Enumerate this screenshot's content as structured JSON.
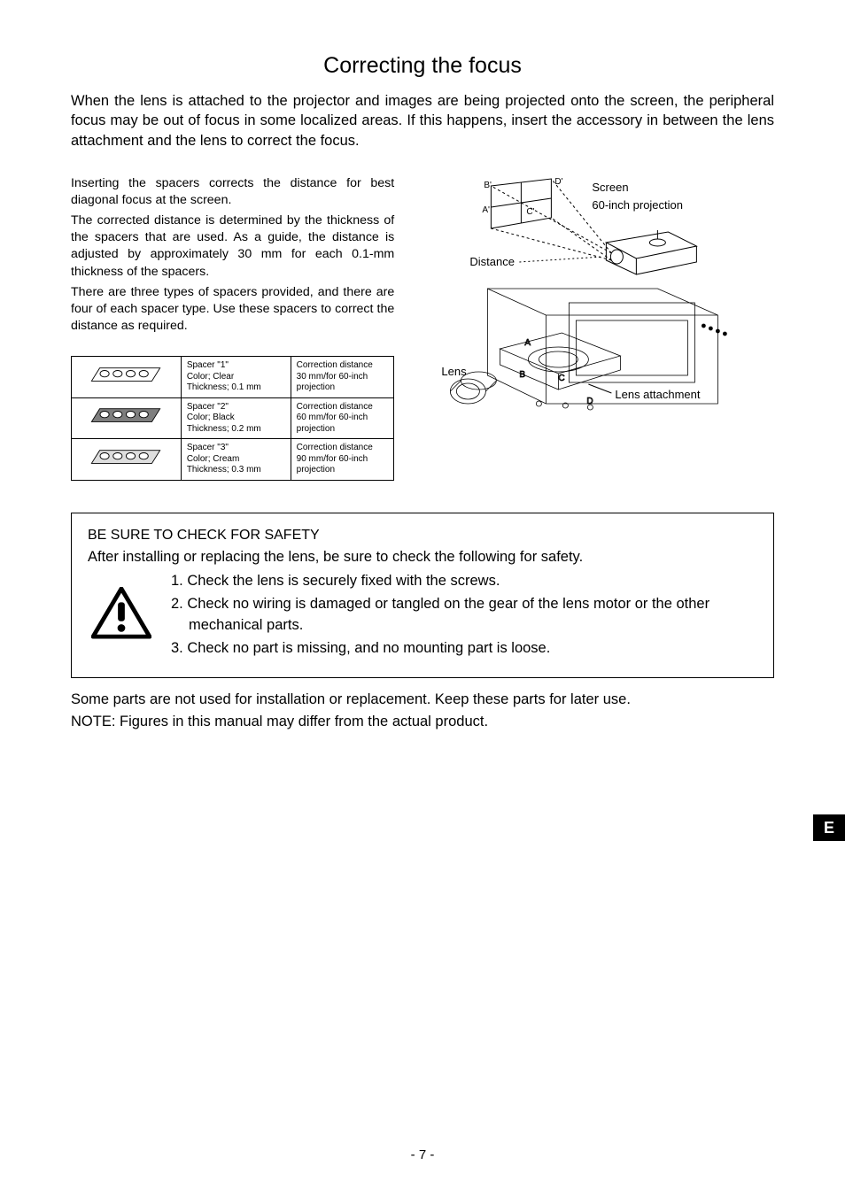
{
  "title": "Correcting the focus",
  "intro": "When the lens is attached to the projector and images are being projected onto the screen, the peripheral focus may be out of focus in some localized areas. If this happens, insert the accessory in between the lens attachment and the lens to correct the focus.",
  "left": {
    "p1": "Inserting the spacers corrects the distance for best diagonal focus at the screen.",
    "p2": "The corrected distance is determined by the thickness of the spacers that are used. As a guide, the distance is adjusted by approximately 30 mm for each 0.1-mm thickness of the spacers.",
    "p3": "There are three types of spacers provided, and there are four of each spacer type. Use these spacers to correct the distance as required."
  },
  "spacer_table": {
    "rows": [
      {
        "name": "Spacer \"1\"",
        "color": "Color; Clear",
        "thick": "Thickness; 0.1 mm",
        "corr1": "Correction distance",
        "corr2": "30 mm/for 60-inch",
        "corr3": "projection",
        "fill": "#ffffff"
      },
      {
        "name": "Spacer \"2\"",
        "color": "Color; Black",
        "thick": "Thickness; 0.2 mm",
        "corr1": "Correction distance",
        "corr2": "60 mm/for 60-inch",
        "corr3": "projection",
        "fill": "#7e7e7e"
      },
      {
        "name": "Spacer \"3\"",
        "color": "Color; Cream",
        "thick": "Thickness; 0.3 mm",
        "corr1": "Correction distance",
        "corr2": "90 mm/for 60-inch",
        "corr3": "projection",
        "fill": "#dedede"
      }
    ]
  },
  "diagram": {
    "labels": {
      "screen": "Screen",
      "proj60": "60-inch projection",
      "distance": "Distance",
      "lens": "Lens",
      "lens_attach": "Lens attachment",
      "A": "A",
      "B": "B",
      "C": "C",
      "D": "D",
      "Ap": "A'",
      "Bp": "B'",
      "Cp": "C'",
      "Dp": "D'"
    }
  },
  "safety": {
    "head": "BE SURE TO CHECK FOR SAFETY",
    "after_head": "After installing or replacing the lens, be sure to check the following for safety.",
    "items": [
      "1. Check the lens is securely fixed with the screws.",
      "2. Check no wiring is damaged or tangled on the gear of the lens motor or the other mechanical parts.",
      "3. Check no part is missing, and no mounting part is loose."
    ]
  },
  "after_box": {
    "l1": "Some parts are not used for installation or replacement. Keep these parts for later use.",
    "l2": "NOTE: Figures in this manual may differ from the actual product."
  },
  "page_tab": "E",
  "page_num": "- 7 -",
  "style": {
    "body_font": "Arial",
    "text_color": "#000000",
    "border_color": "#000000",
    "bg": "#ffffff"
  }
}
